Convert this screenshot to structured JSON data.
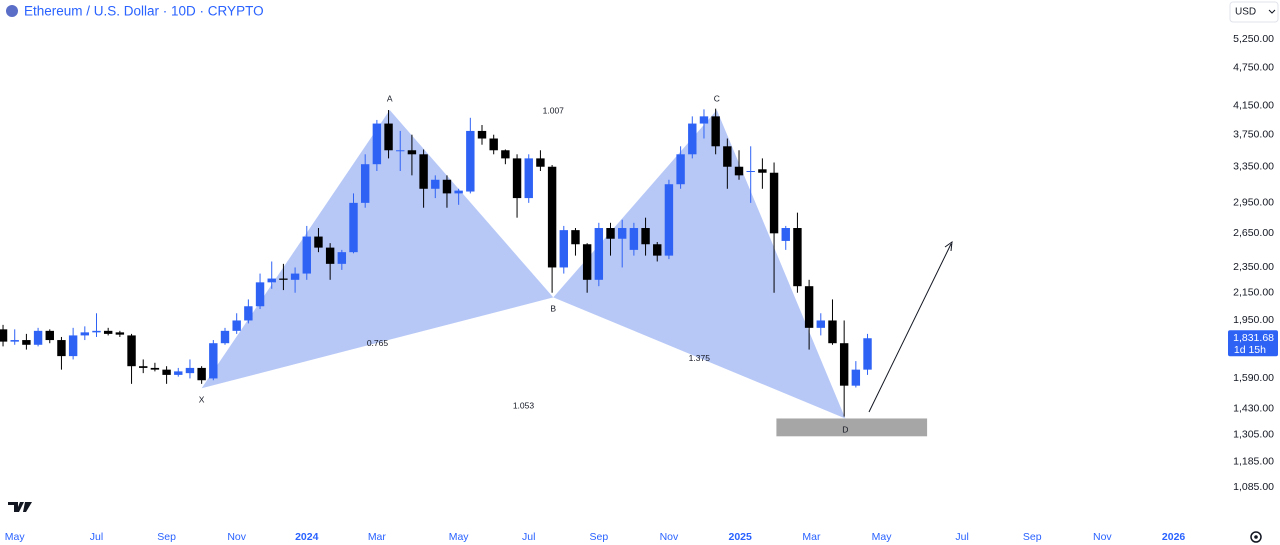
{
  "header": {
    "title": "Ethereum / U.S. Dollar · 10D · CRYPTO",
    "currency": "USD"
  },
  "chart_data": {
    "type": "candlestick",
    "log_scale": true,
    "up_color": "#2e62f5",
    "down_color": "#000000",
    "categories": [
      null,
      null,
      null,
      null,
      null,
      null,
      null,
      null,
      null,
      null,
      null,
      null,
      null,
      null,
      null,
      null,
      null,
      null,
      null,
      null,
      null,
      null,
      null,
      null,
      null,
      null,
      null,
      null,
      null,
      null,
      null,
      null,
      null,
      null,
      null,
      null,
      null,
      null,
      null,
      null,
      null,
      null,
      null,
      null,
      null,
      null,
      null,
      null,
      null,
      null,
      null,
      null,
      null,
      null,
      null,
      null,
      null,
      null,
      null,
      null,
      null,
      null,
      null,
      null,
      null,
      null,
      null,
      null,
      null,
      null,
      null,
      null,
      null,
      null,
      null
    ],
    "open": [
      1890,
      1810,
      1820,
      1790,
      1880,
      1820,
      1720,
      1850,
      1870,
      1880,
      1870,
      1850,
      1660,
      1650,
      1640,
      1610,
      1620,
      1650,
      1590,
      1800,
      1880,
      1950,
      2050,
      2230,
      2260,
      2250,
      2300,
      2620,
      2520,
      2380,
      2480,
      2950,
      3380,
      3900,
      3550,
      3550,
      3500,
      3100,
      3200,
      3050,
      3070,
      3800,
      3700,
      3550,
      3450,
      3000,
      3450,
      3350,
      2350,
      2680,
      2550,
      2250,
      2700,
      2600,
      2500,
      2700,
      2550,
      2450,
      3150,
      3500,
      3900,
      4000,
      3600,
      3350,
      3300,
      3320,
      3280,
      2580,
      2700,
      2200,
      1900,
      1950,
      1800,
      1550,
      1640
    ],
    "high": [
      1920,
      1890,
      1860,
      1900,
      1890,
      1840,
      1900,
      1910,
      2000,
      1900,
      1880,
      1860,
      1700,
      1680,
      1660,
      1650,
      1700,
      1660,
      1820,
      1900,
      2000,
      2100,
      2300,
      2400,
      2380,
      2350,
      2720,
      2700,
      2560,
      2500,
      3050,
      3500,
      3950,
      4090,
      3800,
      3750,
      3560,
      3250,
      3250,
      3100,
      3980,
      3880,
      3750,
      3560,
      3500,
      3500,
      3550,
      3370,
      2720,
      2700,
      2560,
      2750,
      2750,
      2780,
      2750,
      2800,
      2570,
      3200,
      3600,
      4000,
      4100,
      4110,
      3700,
      3550,
      3600,
      3450,
      3400,
      2720,
      2850,
      2250,
      2000,
      2100,
      1950,
      1690,
      1860
    ],
    "low": [
      1780,
      1790,
      1760,
      1780,
      1800,
      1640,
      1700,
      1820,
      1840,
      1850,
      1840,
      1560,
      1620,
      1630,
      1560,
      1600,
      1590,
      1560,
      1580,
      1790,
      1860,
      1930,
      2030,
      2180,
      2170,
      2150,
      2250,
      2480,
      2250,
      2330,
      2470,
      2900,
      3300,
      3450,
      3300,
      3250,
      2900,
      3000,
      2900,
      2930,
      3050,
      3620,
      3500,
      3380,
      2800,
      2950,
      3300,
      2150,
      2300,
      2450,
      2150,
      2200,
      2450,
      2350,
      2450,
      2450,
      2400,
      2420,
      3100,
      3450,
      3700,
      3500,
      3100,
      3200,
      2950,
      3100,
      2150,
      2500,
      2150,
      1760,
      1850,
      1790,
      1390,
      1540,
      1610
    ],
    "close": [
      1810,
      1820,
      1790,
      1880,
      1820,
      1720,
      1850,
      1870,
      1880,
      1860,
      1855,
      1660,
      1650,
      1640,
      1610,
      1630,
      1650,
      1580,
      1800,
      1880,
      1950,
      2050,
      2230,
      2260,
      2250,
      2300,
      2620,
      2520,
      2380,
      2480,
      2950,
      3380,
      3900,
      3550,
      3550,
      3500,
      3100,
      3200,
      3050,
      3080,
      3800,
      3700,
      3550,
      3450,
      3000,
      3450,
      3350,
      2350,
      2680,
      2550,
      2250,
      2700,
      2600,
      2700,
      2700,
      2550,
      2450,
      3150,
      3500,
      3900,
      4000,
      3600,
      3350,
      3250,
      3300,
      3280,
      2650,
      2700,
      2200,
      1900,
      1950,
      1800,
      1550,
      1640,
      1831.68
    ],
    "last_label": "1,831.68",
    "countdown": "1d 15h",
    "ylim": [
      966,
      6025
    ],
    "yticks": [
      {
        "value": 1085,
        "label": "1,085.00"
      },
      {
        "value": 1185,
        "label": "1,185.00"
      },
      {
        "value": 1305,
        "label": "1,305.00"
      },
      {
        "value": 1430,
        "label": "1,430.00"
      },
      {
        "value": 1590,
        "label": "1,590.00"
      },
      {
        "value": 1950,
        "label": "1,950.00"
      },
      {
        "value": 2150,
        "label": "2,150.00"
      },
      {
        "value": 2350,
        "label": "2,350.00"
      },
      {
        "value": 2650,
        "label": "2,650.00"
      },
      {
        "value": 2950,
        "label": "2,950.00"
      },
      {
        "value": 3350,
        "label": "3,350.00"
      },
      {
        "value": 3750,
        "label": "3,750.00"
      },
      {
        "value": 4150,
        "label": "4,150.00"
      },
      {
        "value": 4750,
        "label": "4,750.00"
      },
      {
        "value": 5250,
        "label": "5,250.00"
      }
    ],
    "xlim": [
      -0.26,
      104.6
    ],
    "xticks": [
      {
        "value": 1.0,
        "label": "May"
      },
      {
        "value": 8.0,
        "label": "Jul"
      },
      {
        "value": 14.0,
        "label": "Sep"
      },
      {
        "value": 20.0,
        "label": "Nov"
      },
      {
        "value": 26.0,
        "label": "2024"
      },
      {
        "value": 32.0,
        "label": "Mar"
      },
      {
        "value": 39.0,
        "label": "May"
      },
      {
        "value": 45.0,
        "label": "Jul"
      },
      {
        "value": 51.0,
        "label": "Sep"
      },
      {
        "value": 57.0,
        "label": "Nov"
      },
      {
        "value": 63.1,
        "label": "2025"
      },
      {
        "value": 69.2,
        "label": "Mar"
      },
      {
        "value": 75.2,
        "label": "May"
      },
      {
        "value": 82.1,
        "label": "Jul"
      },
      {
        "value": 88.1,
        "label": "Sep"
      },
      {
        "value": 94.1,
        "label": "Nov"
      },
      {
        "value": 100.2,
        "label": "2026"
      }
    ],
    "pattern": {
      "color": "#b3c5f7",
      "points": [
        {
          "label": "X",
          "index": 17.0,
          "price": 1536
        },
        {
          "label": "A",
          "index": 33.1,
          "price": 4090
        },
        {
          "label": "B",
          "index": 47.1,
          "price": 2115
        },
        {
          "label": "C",
          "index": 61.1,
          "price": 4090
        },
        {
          "label": "D",
          "index": 72.1,
          "price": 1381
        }
      ],
      "ratios": [
        "0.765",
        "1.007",
        "1.375",
        "1.053"
      ]
    },
    "zone": {
      "start": 66.2,
      "end": 79.1,
      "high": 1381,
      "low": 1297,
      "color": "#a6a6a6"
    }
  }
}
